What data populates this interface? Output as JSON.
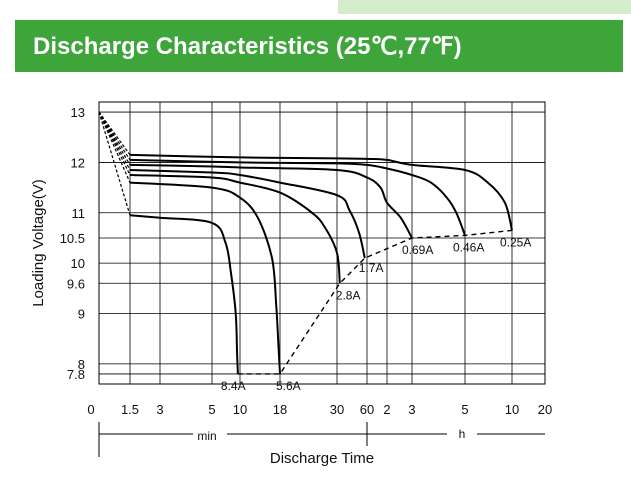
{
  "title": "Discharge Characteristics (25℃,77℉)",
  "colors": {
    "title_bar": "#3ea53a",
    "title_text": "#ffffff",
    "top_tab": "#d5eccb",
    "curves": "#000000",
    "grid": "#000000"
  },
  "chart_data": {
    "type": "line",
    "title": "Discharge Characteristics (25℃,77℉)",
    "xlabel": "Discharge Time",
    "ylabel": "Loading  Voltage(V)",
    "x_scale": "piecewise log, minutes then hours",
    "x_units": [
      "min",
      "h"
    ],
    "x_ticks": [
      "0",
      "1.5",
      "3",
      "5",
      "10",
      "18",
      "30",
      "60",
      "2",
      "3",
      "5",
      "10",
      "20"
    ],
    "y_ticks": [
      "13",
      "12",
      "11",
      "10.5",
      "10",
      "9.6",
      "9",
      "8",
      "7.8"
    ],
    "ylim": [
      7.6,
      13.2
    ],
    "grid": true,
    "series": [
      {
        "name": "8.4A",
        "x": [
          0,
          1.5,
          3,
          5,
          7,
          8,
          9,
          9.3,
          9.5
        ],
        "y": [
          13.0,
          10.95,
          10.9,
          10.8,
          10.4,
          9.8,
          9.0,
          8.2,
          7.8
        ]
      },
      {
        "name": "5.6A",
        "x": [
          0,
          1.5,
          5,
          10,
          13,
          16,
          17,
          17.7,
          18
        ],
        "y": [
          13.0,
          11.6,
          11.5,
          11.3,
          10.9,
          10.1,
          9.2,
          8.2,
          7.8
        ]
      },
      {
        "name": "2.8A",
        "x": [
          0,
          1.5,
          5,
          10,
          18,
          24,
          27,
          30,
          32
        ],
        "y": [
          13.0,
          11.75,
          11.7,
          11.6,
          11.4,
          11.0,
          10.7,
          10.2,
          9.6
        ]
      },
      {
        "name": "1.7A",
        "x": [
          0,
          1.5,
          5,
          10,
          18,
          30,
          40,
          50,
          57
        ],
        "y": [
          13.0,
          11.85,
          11.8,
          11.75,
          11.6,
          11.35,
          11.05,
          10.6,
          10.1
        ]
      },
      {
        "name": "0.69A",
        "x": [
          0,
          1.5,
          5,
          10,
          30,
          60,
          96,
          120,
          150,
          180
        ],
        "y": [
          13.0,
          11.95,
          11.92,
          11.9,
          11.85,
          11.7,
          11.5,
          11.2,
          10.9,
          10.5
        ]
      },
      {
        "name": "0.46A",
        "x": [
          0,
          1.5,
          10,
          30,
          60,
          120,
          180,
          216,
          252,
          276,
          300
        ],
        "y": [
          13.0,
          12.05,
          12.0,
          11.98,
          11.95,
          11.88,
          11.75,
          11.6,
          11.3,
          11.0,
          10.55
        ]
      },
      {
        "name": "0.25A",
        "x": [
          0,
          1.5,
          10,
          30,
          60,
          120,
          180,
          300,
          420,
          540,
          600
        ],
        "y": [
          13.0,
          12.15,
          12.1,
          12.08,
          12.07,
          12.05,
          11.95,
          11.85,
          11.6,
          11.2,
          10.65
        ]
      }
    ],
    "end_voltage_line": {
      "x": [
        9.5,
        18,
        32,
        57,
        180,
        300,
        600
      ],
      "y": [
        7.8,
        7.8,
        9.6,
        10.1,
        10.5,
        10.55,
        10.65
      ]
    }
  }
}
